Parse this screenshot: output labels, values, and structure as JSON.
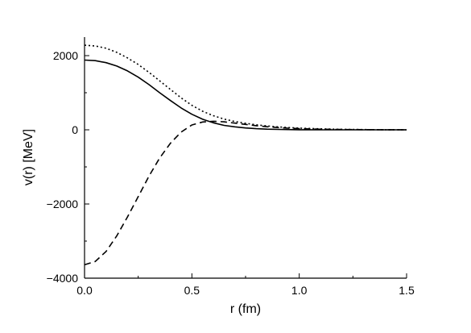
{
  "chart_data": {
    "type": "line",
    "xlabel": "r (fm)",
    "ylabel": "v(r) [MeV]",
    "xlim": [
      0,
      1.5
    ],
    "ylim": [
      -4000,
      2500
    ],
    "x_ticks": [
      0,
      0.5,
      1.0,
      1.5
    ],
    "x_tick_labels": [
      "0.0",
      "0.5",
      "1.0",
      "1.5"
    ],
    "y_ticks": [
      -4000,
      -2000,
      0,
      2000
    ],
    "y_tick_labels": [
      "−4000",
      "−2000",
      "0",
      "2000"
    ],
    "grid": false,
    "legend": "none",
    "series": [
      {
        "style": "solid",
        "x": [
          0,
          0.05,
          0.1,
          0.15,
          0.2,
          0.25,
          0.3,
          0.35,
          0.4,
          0.45,
          0.5,
          0.55,
          0.6,
          0.65,
          0.7,
          0.75,
          0.8,
          0.85,
          0.9,
          0.95,
          1.0,
          1.1,
          1.2,
          1.3,
          1.4,
          1.5
        ],
        "values": [
          1880,
          1865,
          1810,
          1720,
          1590,
          1420,
          1220,
          1000,
          790,
          590,
          420,
          285,
          190,
          120,
          80,
          50,
          30,
          18,
          10,
          6,
          3,
          1,
          0,
          0,
          0,
          0
        ]
      },
      {
        "style": "dotted",
        "x": [
          0,
          0.05,
          0.1,
          0.15,
          0.2,
          0.25,
          0.3,
          0.35,
          0.4,
          0.45,
          0.5,
          0.55,
          0.6,
          0.65,
          0.7,
          0.75,
          0.8,
          0.85,
          0.9,
          0.95,
          1.0,
          1.1,
          1.2,
          1.3,
          1.4,
          1.5
        ],
        "values": [
          2280,
          2260,
          2200,
          2090,
          1940,
          1760,
          1550,
          1320,
          1090,
          860,
          660,
          500,
          380,
          290,
          225,
          175,
          135,
          105,
          80,
          60,
          45,
          25,
          12,
          6,
          3,
          1
        ]
      },
      {
        "style": "dashed",
        "x": [
          0,
          0.05,
          0.1,
          0.15,
          0.2,
          0.25,
          0.3,
          0.35,
          0.4,
          0.45,
          0.5,
          0.55,
          0.6,
          0.65,
          0.7,
          0.75,
          0.8,
          0.85,
          0.9,
          0.95,
          1.0,
          1.1,
          1.2,
          1.3,
          1.4,
          1.5
        ],
        "values": [
          -3640,
          -3550,
          -3280,
          -2860,
          -2350,
          -1800,
          -1250,
          -760,
          -360,
          -60,
          130,
          210,
          230,
          215,
          180,
          145,
          110,
          82,
          60,
          44,
          32,
          16,
          8,
          4,
          2,
          1
        ]
      }
    ]
  }
}
